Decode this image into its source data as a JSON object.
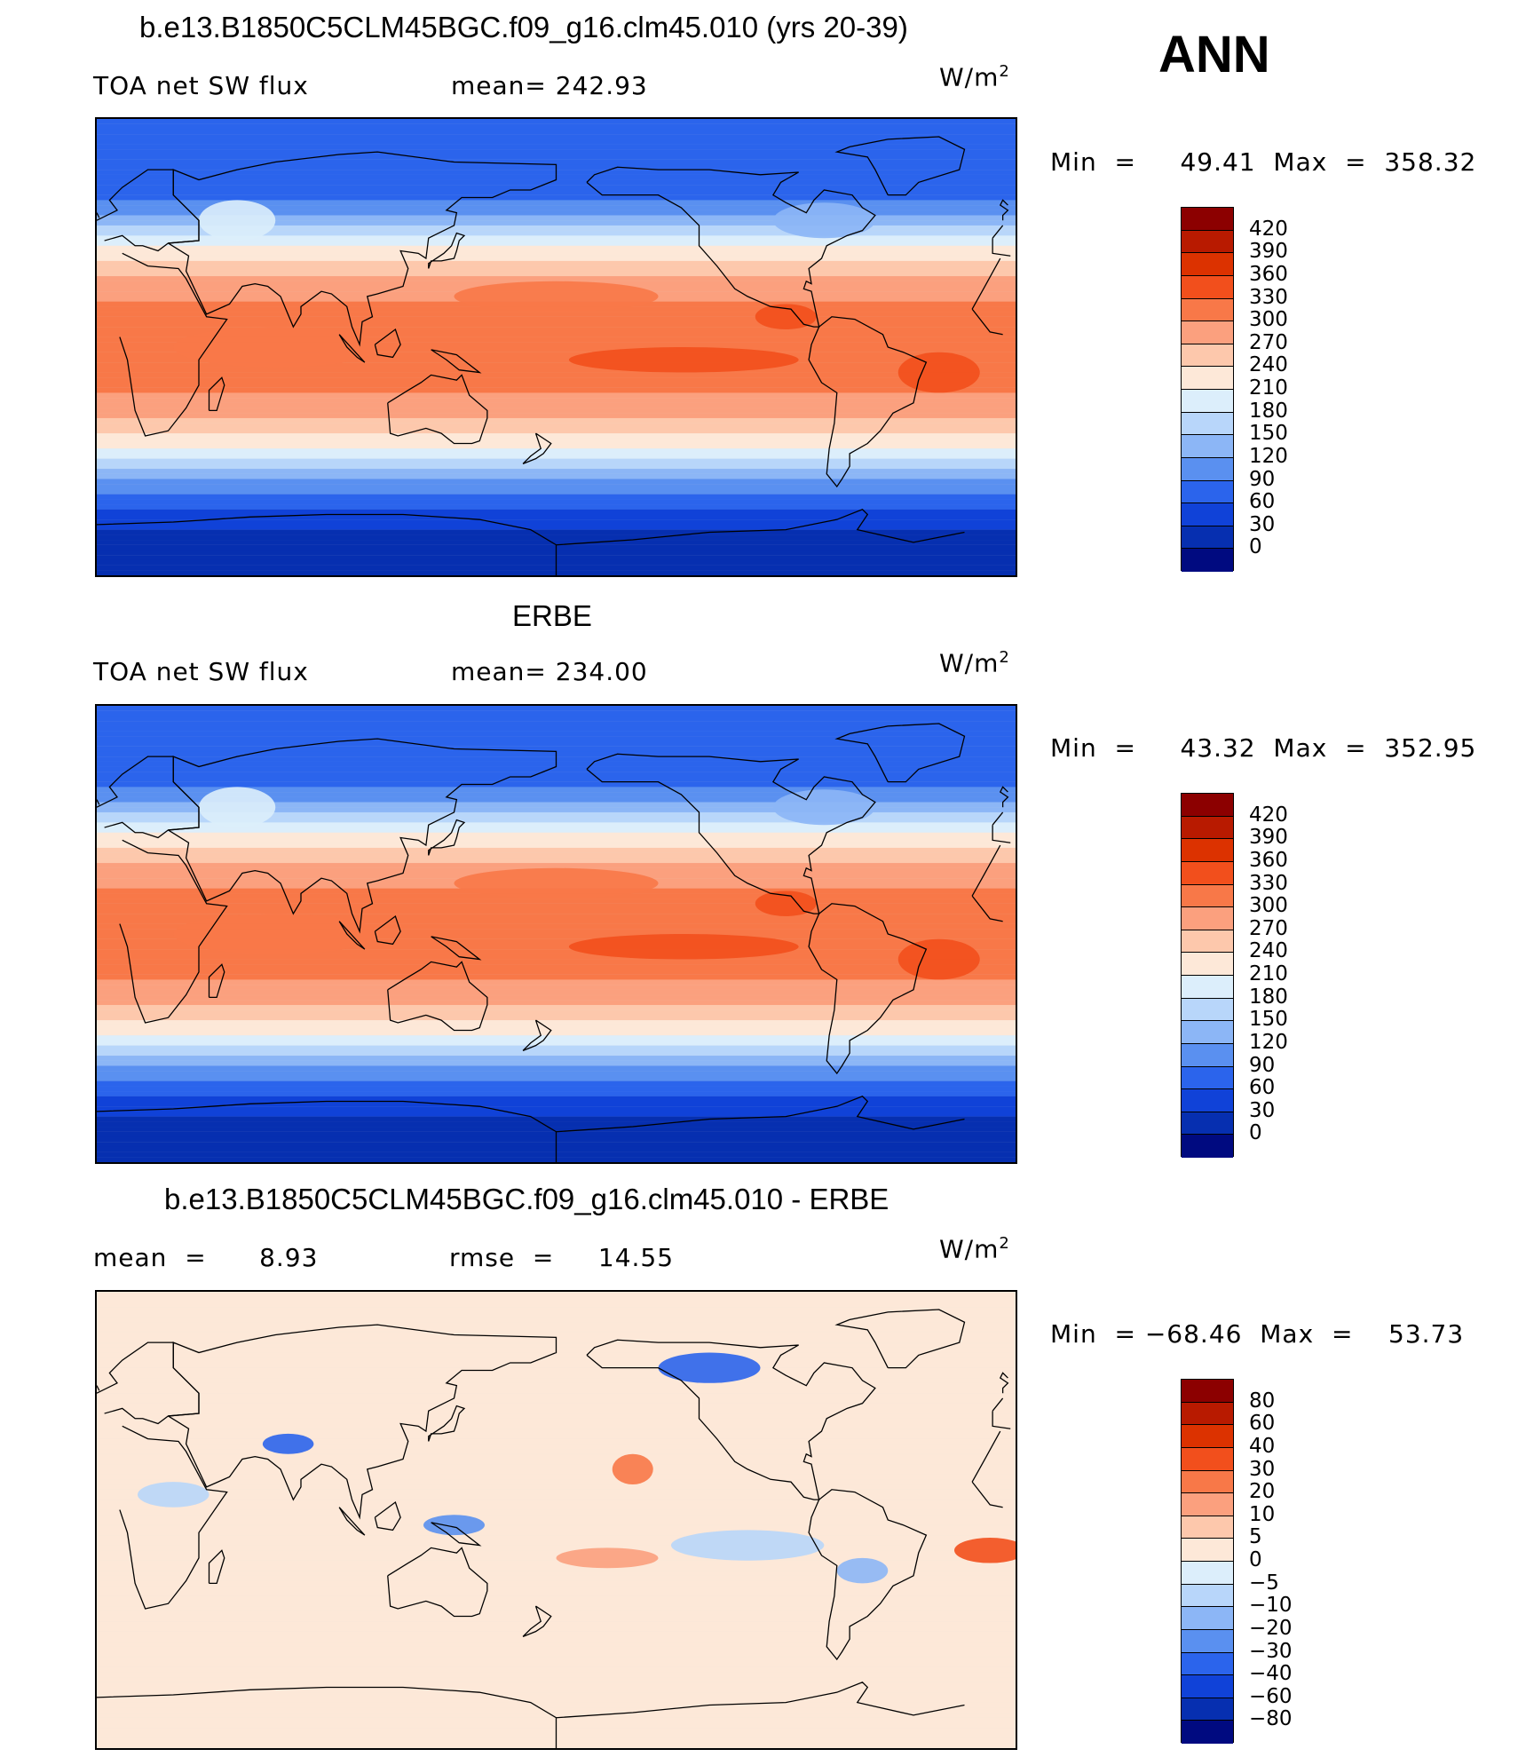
{
  "season": "ANN",
  "units_base": "W/m",
  "units_exp": "2",
  "panels": [
    {
      "title": "b.e13.B1850C5CLM45BGC.f09_g16.clm45.010 (yrs 20-39)",
      "left_label": "TOA net SW flux",
      "mid_label": "mean=  242.93",
      "minmax": "Min  =     49.41  Max  =  358.32",
      "levels": [
        "420",
        "390",
        "360",
        "330",
        "300",
        "270",
        "240",
        "210",
        "180",
        "150",
        "120",
        "90",
        "60",
        "30",
        "0"
      ],
      "colors": [
        "#8c0000",
        "#b81a00",
        "#dc3200",
        "#f24f1c",
        "#f87848",
        "#fba07e",
        "#fdc8ac",
        "#fde8d8",
        "#dceefb",
        "#b8d6fa",
        "#8cb6f6",
        "#5a90f0",
        "#2b64ec",
        "#1042d8",
        "#062fb0",
        "#000a80"
      ]
    },
    {
      "title": "ERBE",
      "left_label": "TOA net SW flux",
      "mid_label": "mean=  234.00",
      "minmax": "Min  =     43.32  Max  =  352.95",
      "levels": [
        "420",
        "390",
        "360",
        "330",
        "300",
        "270",
        "240",
        "210",
        "180",
        "150",
        "120",
        "90",
        "60",
        "30",
        "0"
      ],
      "colors": [
        "#8c0000",
        "#b81a00",
        "#dc3200",
        "#f24f1c",
        "#f87848",
        "#fba07e",
        "#fdc8ac",
        "#fde8d8",
        "#dceefb",
        "#b8d6fa",
        "#8cb6f6",
        "#5a90f0",
        "#2b64ec",
        "#1042d8",
        "#062fb0",
        "#000a80"
      ]
    },
    {
      "title": "b.e13.B1850C5CLM45BGC.f09_g16.clm45.010 - ERBE",
      "left_label": "mean  =      8.93",
      "mid_label": "rmse  =     14.55",
      "minmax": "Min  = −68.46  Max  =    53.73",
      "levels": [
        "80",
        "60",
        "40",
        "30",
        "20",
        "10",
        "5",
        "0",
        "−5",
        "−10",
        "−20",
        "−30",
        "−40",
        "−60",
        "−80"
      ],
      "colors": [
        "#8c0000",
        "#b81a00",
        "#dc3200",
        "#f24f1c",
        "#f87848",
        "#fba07e",
        "#fdc8ac",
        "#fde8d8",
        "#dceefb",
        "#b8d6fa",
        "#8cb6f6",
        "#5a90f0",
        "#2b64ec",
        "#1042d8",
        "#062fb0",
        "#000a80"
      ]
    }
  ]
}
